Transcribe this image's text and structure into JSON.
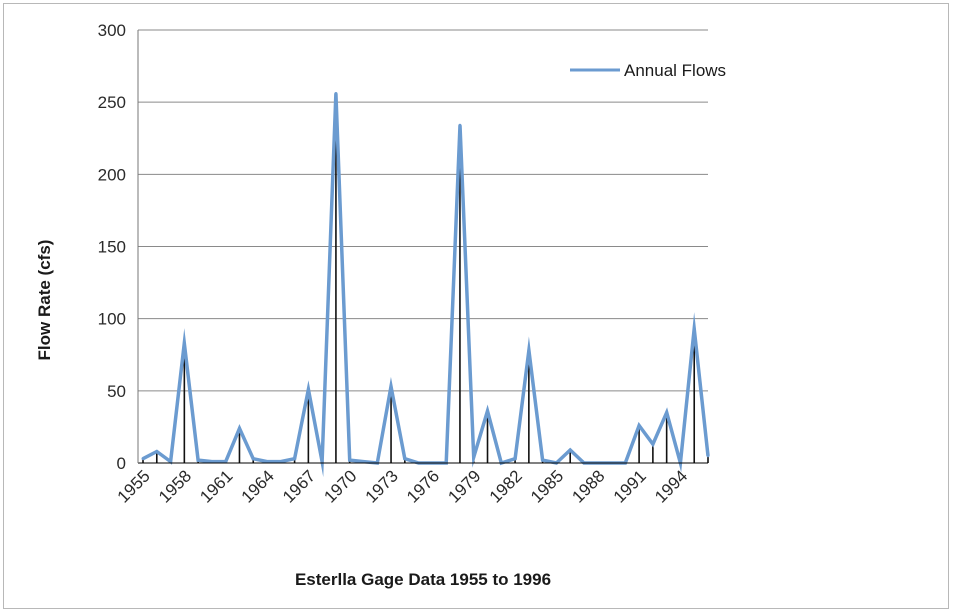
{
  "chart_data": {
    "type": "line",
    "title": "",
    "xlabel": "Esterlla Gage Data 1955 to 1996",
    "ylabel": "Flow Rate (cfs)",
    "ylim": [
      0,
      300
    ],
    "yticks": [
      "0",
      "50",
      "100",
      "150",
      "200",
      "250",
      "300"
    ],
    "xtick_labels": [
      "1955",
      "1958",
      "1961",
      "1964",
      "1967",
      "1970",
      "1973",
      "1976",
      "1979",
      "1982",
      "1985",
      "1988",
      "1991",
      "1994"
    ],
    "grid": "horizontal",
    "legend_position": "top-right",
    "x": [
      1955,
      1956,
      1957,
      1958,
      1959,
      1960,
      1961,
      1962,
      1963,
      1964,
      1965,
      1966,
      1967,
      1968,
      1969,
      1970,
      1971,
      1972,
      1973,
      1974,
      1975,
      1976,
      1977,
      1978,
      1979,
      1980,
      1981,
      1982,
      1983,
      1984,
      1985,
      1986,
      1987,
      1988,
      1989,
      1990,
      1991,
      1992,
      1993,
      1994,
      1995,
      1996
    ],
    "series": [
      {
        "name": "Annual Flows",
        "color": "#6b9bd0",
        "values": [
          3,
          8,
          1,
          83,
          2,
          1,
          1,
          24,
          3,
          1,
          1,
          3,
          51,
          1,
          256,
          2,
          1,
          0,
          53,
          3,
          0,
          0,
          0,
          234,
          4,
          36,
          0,
          3,
          78,
          2,
          0,
          9,
          0,
          0,
          0,
          0,
          26,
          13,
          35,
          0,
          93,
          5
        ]
      }
    ]
  }
}
